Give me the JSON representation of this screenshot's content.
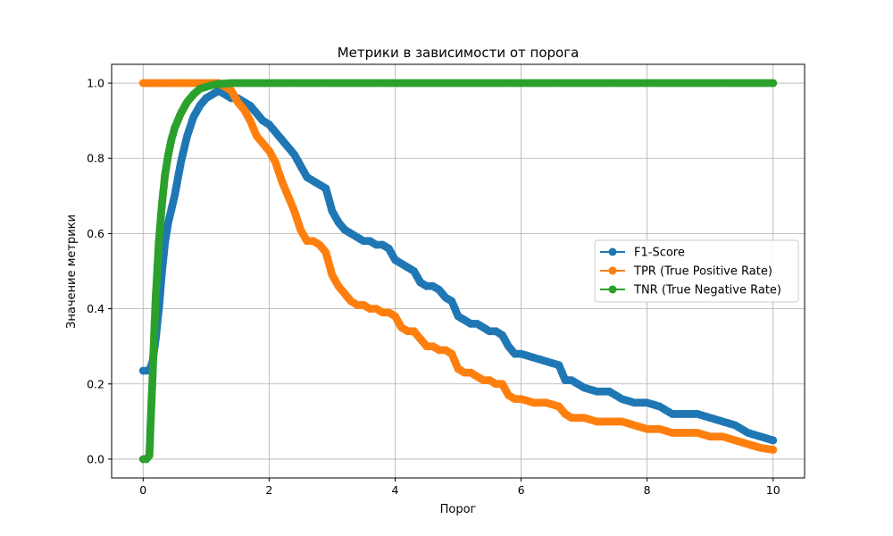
{
  "chart_data": {
    "type": "line",
    "title": "Метрики в зависимости от порога",
    "xlabel": "Порог",
    "ylabel": "Значение метрики",
    "xlim": [
      -0.5,
      10.5
    ],
    "ylim": [
      -0.05,
      1.05
    ],
    "xticks": [
      0,
      2,
      4,
      6,
      8,
      10
    ],
    "yticks": [
      0.0,
      0.2,
      0.4,
      0.6,
      0.8,
      1.0
    ],
    "xtick_labels": [
      "0",
      "2",
      "4",
      "6",
      "8",
      "10"
    ],
    "ytick_labels": [
      "0.0",
      "0.2",
      "0.4",
      "0.6",
      "0.8",
      "1.0"
    ],
    "grid": true,
    "legend_position": "center-right",
    "series": [
      {
        "name": "F1-Score",
        "color": "#1f77b4",
        "marker": "circle",
        "x": [
          0.0,
          0.1,
          0.15,
          0.2,
          0.25,
          0.3,
          0.35,
          0.4,
          0.5,
          0.6,
          0.7,
          0.8,
          0.9,
          1.0,
          1.1,
          1.2,
          1.3,
          1.4,
          1.5,
          1.6,
          1.7,
          1.8,
          1.9,
          2.0,
          2.1,
          2.2,
          2.3,
          2.4,
          2.5,
          2.6,
          2.7,
          2.8,
          2.9,
          3.0,
          3.1,
          3.2,
          3.3,
          3.4,
          3.5,
          3.6,
          3.7,
          3.8,
          3.9,
          4.0,
          4.1,
          4.2,
          4.3,
          4.4,
          4.5,
          4.6,
          4.7,
          4.8,
          4.9,
          5.0,
          5.1,
          5.2,
          5.3,
          5.4,
          5.5,
          5.6,
          5.7,
          5.8,
          5.9,
          6.0,
          6.2,
          6.4,
          6.6,
          6.7,
          6.8,
          7.0,
          7.2,
          7.4,
          7.6,
          7.8,
          8.0,
          8.2,
          8.4,
          8.6,
          8.8,
          9.0,
          9.2,
          9.4,
          9.6,
          9.8,
          10.0
        ],
        "values": [
          0.235,
          0.235,
          0.26,
          0.32,
          0.4,
          0.5,
          0.58,
          0.63,
          0.7,
          0.79,
          0.86,
          0.91,
          0.94,
          0.96,
          0.97,
          0.98,
          0.97,
          0.96,
          0.96,
          0.95,
          0.94,
          0.92,
          0.9,
          0.89,
          0.87,
          0.85,
          0.83,
          0.81,
          0.78,
          0.75,
          0.74,
          0.73,
          0.72,
          0.66,
          0.63,
          0.61,
          0.6,
          0.59,
          0.58,
          0.58,
          0.57,
          0.57,
          0.56,
          0.53,
          0.52,
          0.51,
          0.5,
          0.47,
          0.46,
          0.46,
          0.45,
          0.43,
          0.42,
          0.38,
          0.37,
          0.36,
          0.36,
          0.35,
          0.34,
          0.34,
          0.33,
          0.3,
          0.28,
          0.28,
          0.27,
          0.26,
          0.25,
          0.21,
          0.21,
          0.19,
          0.18,
          0.18,
          0.16,
          0.15,
          0.15,
          0.14,
          0.12,
          0.12,
          0.12,
          0.11,
          0.1,
          0.09,
          0.07,
          0.06,
          0.05
        ]
      },
      {
        "name": "TPR (True Positive Rate)",
        "color": "#ff7f0e",
        "marker": "circle",
        "x": [
          0.0,
          0.2,
          0.4,
          0.6,
          0.8,
          1.0,
          1.2,
          1.4,
          1.5,
          1.6,
          1.7,
          1.8,
          1.9,
          2.0,
          2.1,
          2.2,
          2.3,
          2.4,
          2.5,
          2.6,
          2.7,
          2.8,
          2.9,
          3.0,
          3.1,
          3.2,
          3.3,
          3.4,
          3.5,
          3.6,
          3.7,
          3.8,
          3.9,
          4.0,
          4.1,
          4.2,
          4.3,
          4.4,
          4.5,
          4.6,
          4.7,
          4.8,
          4.9,
          5.0,
          5.1,
          5.2,
          5.3,
          5.4,
          5.5,
          5.6,
          5.7,
          5.8,
          5.9,
          6.0,
          6.2,
          6.4,
          6.6,
          6.7,
          6.8,
          7.0,
          7.2,
          7.4,
          7.6,
          7.8,
          8.0,
          8.2,
          8.4,
          8.6,
          8.8,
          9.0,
          9.2,
          9.4,
          9.6,
          9.8,
          10.0
        ],
        "values": [
          1.0,
          1.0,
          1.0,
          1.0,
          1.0,
          1.0,
          1.0,
          0.98,
          0.95,
          0.93,
          0.9,
          0.86,
          0.84,
          0.82,
          0.79,
          0.74,
          0.7,
          0.66,
          0.61,
          0.58,
          0.58,
          0.57,
          0.55,
          0.49,
          0.46,
          0.44,
          0.42,
          0.41,
          0.41,
          0.4,
          0.4,
          0.39,
          0.39,
          0.38,
          0.35,
          0.34,
          0.34,
          0.32,
          0.3,
          0.3,
          0.29,
          0.29,
          0.28,
          0.24,
          0.23,
          0.23,
          0.22,
          0.21,
          0.21,
          0.2,
          0.2,
          0.17,
          0.16,
          0.16,
          0.15,
          0.15,
          0.14,
          0.12,
          0.11,
          0.11,
          0.1,
          0.1,
          0.1,
          0.09,
          0.08,
          0.08,
          0.07,
          0.07,
          0.07,
          0.06,
          0.06,
          0.05,
          0.04,
          0.03,
          0.025
        ]
      },
      {
        "name": "TNR (True Negative Rate)",
        "color": "#2ca02c",
        "marker": "circle",
        "x": [
          0.0,
          0.05,
          0.1,
          0.12,
          0.15,
          0.18,
          0.2,
          0.25,
          0.3,
          0.35,
          0.4,
          0.45,
          0.5,
          0.6,
          0.7,
          0.8,
          0.9,
          1.0,
          1.1,
          1.2,
          1.4,
          1.6,
          1.8,
          2.0,
          3.0,
          4.0,
          5.0,
          6.0,
          7.0,
          8.0,
          9.0,
          10.0
        ],
        "values": [
          0.0,
          0.0,
          0.01,
          0.1,
          0.22,
          0.35,
          0.43,
          0.58,
          0.68,
          0.76,
          0.81,
          0.85,
          0.88,
          0.92,
          0.95,
          0.97,
          0.985,
          0.99,
          0.995,
          0.998,
          1.0,
          1.0,
          1.0,
          1.0,
          1.0,
          1.0,
          1.0,
          1.0,
          1.0,
          1.0,
          1.0,
          1.0
        ]
      }
    ]
  }
}
